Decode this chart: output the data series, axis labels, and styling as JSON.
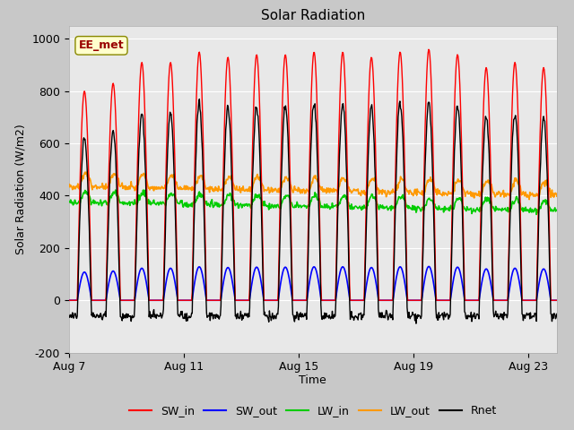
{
  "title": "Solar Radiation",
  "ylabel": "Solar Radiation (W/m2)",
  "xlabel": "Time",
  "ylim": [
    -200,
    1050
  ],
  "yticks": [
    -200,
    0,
    200,
    400,
    600,
    800,
    1000
  ],
  "xtick_labels": [
    "Aug 7",
    "Aug 11",
    "Aug 15",
    "Aug 19",
    "Aug 23"
  ],
  "xtick_positions": [
    0,
    4,
    8,
    12,
    16
  ],
  "annotation_text": "EE_met",
  "fig_bg_color": "#c8c8c8",
  "plot_bg_color": "#e8e8e8",
  "legend_entries": [
    "SW_in",
    "SW_out",
    "LW_in",
    "LW_out",
    "Rnet"
  ],
  "legend_colors": [
    "#ff0000",
    "#0000ff",
    "#00cc00",
    "#ff9900",
    "#000000"
  ],
  "n_days": 17,
  "start_day": 7
}
